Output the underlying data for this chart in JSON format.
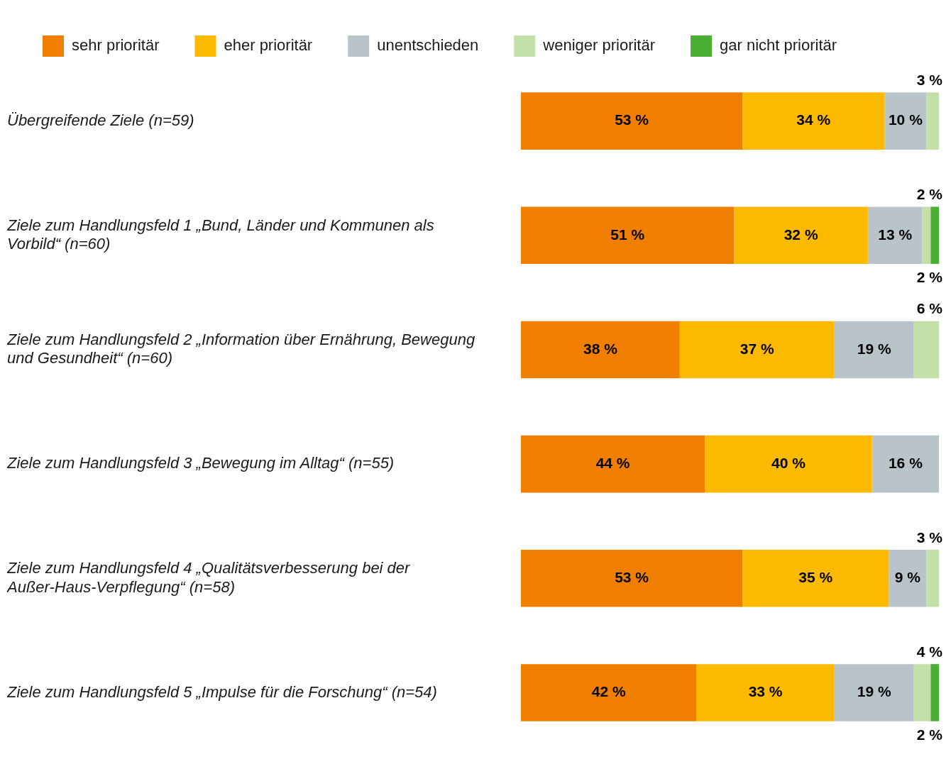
{
  "chart_data": {
    "type": "bar",
    "orientation": "horizontal",
    "stacked": true,
    "categories": [
      "Übergreifende Ziele (n=59)",
      "Ziele zum Handlungsfeld 1 „Bund, Länder und Kommunen als Vorbild“ (n=60)",
      "Ziele zum Handlungsfeld 2 „Information über Ernährung, Bewegung und Gesundheit“ (n=60)",
      "Ziele zum Handlungsfeld 3 „Bewegung im Alltag“ (n=55)",
      "Ziele zum Handlungsfeld 4 „Qualitätsverbesserung bei der Außer-Haus-Verpflegung“ (n=58)",
      "Ziele zum Handlungsfeld 5 „Impulse für die Forschung“ (n=54)"
    ],
    "series": [
      {
        "name": "sehr prioritär",
        "color": "#f07f00",
        "values": [
          53,
          51,
          38,
          44,
          53,
          42
        ],
        "value_labels": [
          "53 %",
          "51 %",
          "38 %",
          "44 %",
          "53 %",
          "42 %"
        ]
      },
      {
        "name": "eher prioritär",
        "color": "#fbb900",
        "values": [
          34,
          32,
          37,
          40,
          35,
          33
        ],
        "value_labels": [
          "34 %",
          "32 %",
          "37 %",
          "40 %",
          "35 %",
          "33 %"
        ]
      },
      {
        "name": "unentschieden",
        "color": "#b8c4c9",
        "values": [
          10,
          13,
          19,
          16,
          9,
          19
        ],
        "value_labels": [
          "10 %",
          "13 %",
          "19 %",
          "16 %",
          "9 %",
          "19 %"
        ]
      },
      {
        "name": "weniger prioritär",
        "color": "#c3e0a8",
        "values": [
          3,
          2,
          6,
          null,
          3,
          4
        ],
        "value_labels": [
          "3 %",
          "2 %",
          "6 %",
          null,
          "3 %",
          "4 %"
        ]
      },
      {
        "name": "gar nicht prioritär",
        "color": "#4caf35",
        "values": [
          null,
          2,
          null,
          null,
          null,
          2
        ],
        "value_labels": [
          null,
          "2 %",
          null,
          null,
          null,
          "2 %"
        ]
      }
    ],
    "xlim": [
      0,
      100
    ],
    "tick_labels": "y",
    "legend": "top"
  }
}
